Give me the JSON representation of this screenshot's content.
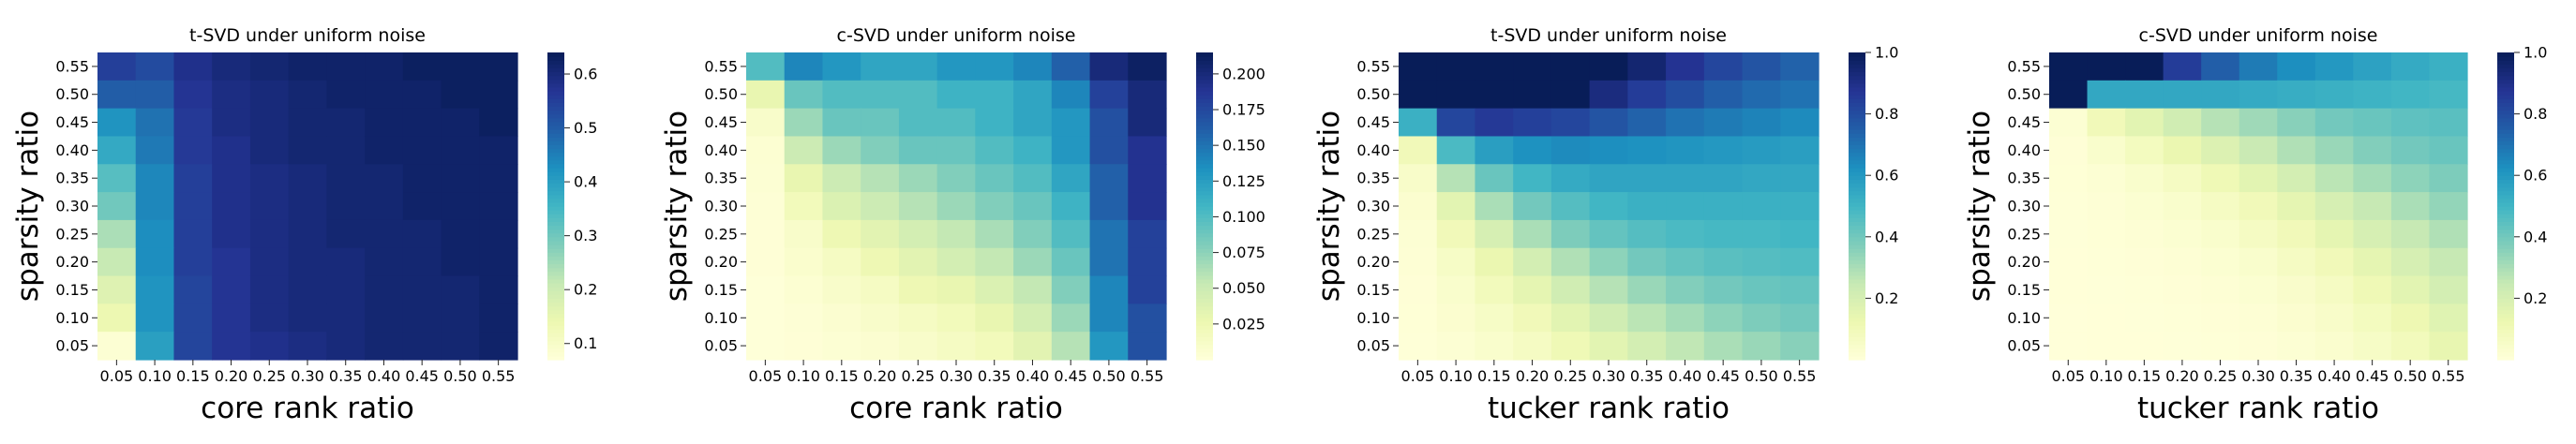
{
  "figure": {
    "cmap": "YlGnBu",
    "cmap_stops": [
      "#ffffd9",
      "#edf8b1",
      "#c7e9b4",
      "#7fcdbb",
      "#41b6c4",
      "#1d91c0",
      "#225ea8",
      "#253494",
      "#081d58"
    ]
  },
  "chart_data": [
    {
      "type": "heatmap",
      "title": "t-SVD under uniform noise",
      "xlabel": "core rank ratio",
      "ylabel": "sparsity ratio",
      "x_ticks": [
        "0.05",
        "0.10",
        "0.15",
        "0.20",
        "0.25",
        "0.30",
        "0.35",
        "0.40",
        "0.45",
        "0.50",
        "0.55"
      ],
      "y_ticks": [
        "0.55",
        "0.50",
        "0.45",
        "0.40",
        "0.35",
        "0.30",
        "0.25",
        "0.20",
        "0.15",
        "0.10",
        "0.05"
      ],
      "colorbar": {
        "min": 0.07,
        "max": 0.64,
        "ticks": [
          0.1,
          0.2,
          0.3,
          0.4,
          0.5,
          0.6
        ],
        "tick_labels": [
          "0.1",
          "0.2",
          "0.3",
          "0.4",
          "0.5",
          "0.6"
        ]
      },
      "values": [
        [
          0.55,
          0.53,
          0.58,
          0.6,
          0.61,
          0.62,
          0.62,
          0.62,
          0.63,
          0.63,
          0.63
        ],
        [
          0.5,
          0.5,
          0.57,
          0.59,
          0.6,
          0.61,
          0.62,
          0.62,
          0.62,
          0.63,
          0.63
        ],
        [
          0.42,
          0.47,
          0.56,
          0.59,
          0.6,
          0.61,
          0.61,
          0.62,
          0.62,
          0.62,
          0.63
        ],
        [
          0.38,
          0.46,
          0.56,
          0.58,
          0.6,
          0.61,
          0.61,
          0.62,
          0.62,
          0.62,
          0.62
        ],
        [
          0.33,
          0.44,
          0.55,
          0.58,
          0.59,
          0.6,
          0.61,
          0.61,
          0.62,
          0.62,
          0.62
        ],
        [
          0.3,
          0.44,
          0.55,
          0.58,
          0.59,
          0.6,
          0.61,
          0.61,
          0.62,
          0.62,
          0.62
        ],
        [
          0.24,
          0.43,
          0.55,
          0.58,
          0.59,
          0.6,
          0.61,
          0.61,
          0.61,
          0.62,
          0.62
        ],
        [
          0.21,
          0.43,
          0.55,
          0.57,
          0.59,
          0.6,
          0.6,
          0.61,
          0.61,
          0.62,
          0.62
        ],
        [
          0.17,
          0.42,
          0.54,
          0.57,
          0.59,
          0.6,
          0.6,
          0.61,
          0.61,
          0.61,
          0.62
        ],
        [
          0.14,
          0.42,
          0.54,
          0.57,
          0.59,
          0.6,
          0.6,
          0.61,
          0.61,
          0.61,
          0.62
        ],
        [
          0.08,
          0.4,
          0.54,
          0.57,
          0.58,
          0.59,
          0.6,
          0.61,
          0.61,
          0.61,
          0.62
        ]
      ]
    },
    {
      "type": "heatmap",
      "title": "c-SVD under uniform noise",
      "xlabel": "core rank ratio",
      "ylabel": "sparsity ratio",
      "x_ticks": [
        "0.05",
        "0.10",
        "0.15",
        "0.20",
        "0.25",
        "0.30",
        "0.35",
        "0.40",
        "0.45",
        "0.50",
        "0.55"
      ],
      "y_ticks": [
        "0.55",
        "0.50",
        "0.45",
        "0.40",
        "0.35",
        "0.30",
        "0.25",
        "0.20",
        "0.15",
        "0.10",
        "0.05"
      ],
      "colorbar": {
        "min": 0.0,
        "max": 0.215,
        "ticks": [
          0.025,
          0.05,
          0.075,
          0.1,
          0.125,
          0.15,
          0.175,
          0.2
        ],
        "tick_labels": [
          "0.025",
          "0.050",
          "0.075",
          "0.100",
          "0.125",
          "0.150",
          "0.175",
          "0.200"
        ]
      },
      "values": [
        [
          0.1,
          0.14,
          0.13,
          0.12,
          0.12,
          0.13,
          0.13,
          0.14,
          0.16,
          0.2,
          0.21
        ],
        [
          0.03,
          0.09,
          0.1,
          0.1,
          0.1,
          0.11,
          0.11,
          0.12,
          0.14,
          0.18,
          0.2
        ],
        [
          0.01,
          0.07,
          0.09,
          0.09,
          0.1,
          0.1,
          0.11,
          0.12,
          0.13,
          0.17,
          0.2
        ],
        [
          0.005,
          0.05,
          0.07,
          0.08,
          0.09,
          0.09,
          0.1,
          0.11,
          0.13,
          0.17,
          0.19
        ],
        [
          0.004,
          0.03,
          0.05,
          0.06,
          0.07,
          0.08,
          0.09,
          0.1,
          0.12,
          0.16,
          0.19
        ],
        [
          0.003,
          0.02,
          0.04,
          0.05,
          0.06,
          0.07,
          0.08,
          0.09,
          0.11,
          0.16,
          0.19
        ],
        [
          0.002,
          0.01,
          0.025,
          0.035,
          0.045,
          0.055,
          0.065,
          0.08,
          0.1,
          0.15,
          0.18
        ],
        [
          0.002,
          0.008,
          0.015,
          0.025,
          0.035,
          0.045,
          0.055,
          0.07,
          0.09,
          0.15,
          0.18
        ],
        [
          0.001,
          0.005,
          0.01,
          0.015,
          0.025,
          0.03,
          0.04,
          0.055,
          0.08,
          0.14,
          0.18
        ],
        [
          0.001,
          0.003,
          0.006,
          0.01,
          0.015,
          0.02,
          0.03,
          0.045,
          0.07,
          0.14,
          0.17
        ],
        [
          0.001,
          0.002,
          0.004,
          0.006,
          0.01,
          0.015,
          0.02,
          0.035,
          0.06,
          0.13,
          0.17
        ]
      ]
    },
    {
      "type": "heatmap",
      "title": "t-SVD under uniform noise",
      "xlabel": "tucker rank ratio",
      "ylabel": "sparsity ratio",
      "x_ticks": [
        "0.05",
        "0.10",
        "0.15",
        "0.20",
        "0.25",
        "0.30",
        "0.35",
        "0.40",
        "0.45",
        "0.50",
        "0.55"
      ],
      "y_ticks": [
        "0.55",
        "0.50",
        "0.45",
        "0.40",
        "0.35",
        "0.30",
        "0.25",
        "0.20",
        "0.15",
        "0.10",
        "0.05"
      ],
      "colorbar": {
        "min": 0.0,
        "max": 1.0,
        "ticks": [
          0.2,
          0.4,
          0.6,
          0.8,
          1.0
        ],
        "tick_labels": [
          "0.2",
          "0.4",
          "0.6",
          "0.8",
          "1.0"
        ]
      },
      "values": [
        [
          1.0,
          1.0,
          1.0,
          1.0,
          1.0,
          1.0,
          0.95,
          0.88,
          0.82,
          0.78,
          0.74
        ],
        [
          1.0,
          1.0,
          1.0,
          1.0,
          1.0,
          0.92,
          0.85,
          0.8,
          0.75,
          0.72,
          0.7
        ],
        [
          0.52,
          0.82,
          0.86,
          0.84,
          0.82,
          0.78,
          0.74,
          0.7,
          0.68,
          0.66,
          0.64
        ],
        [
          0.1,
          0.48,
          0.58,
          0.62,
          0.64,
          0.63,
          0.62,
          0.61,
          0.6,
          0.59,
          0.58
        ],
        [
          0.05,
          0.28,
          0.42,
          0.5,
          0.54,
          0.56,
          0.56,
          0.56,
          0.56,
          0.55,
          0.55
        ],
        [
          0.03,
          0.16,
          0.3,
          0.4,
          0.46,
          0.5,
          0.52,
          0.52,
          0.52,
          0.52,
          0.52
        ],
        [
          0.02,
          0.1,
          0.2,
          0.3,
          0.38,
          0.43,
          0.46,
          0.48,
          0.49,
          0.49,
          0.5
        ],
        [
          0.015,
          0.06,
          0.13,
          0.21,
          0.29,
          0.35,
          0.4,
          0.43,
          0.45,
          0.46,
          0.47
        ],
        [
          0.01,
          0.04,
          0.09,
          0.15,
          0.22,
          0.28,
          0.33,
          0.37,
          0.4,
          0.42,
          0.43
        ],
        [
          0.008,
          0.03,
          0.06,
          0.1,
          0.16,
          0.22,
          0.27,
          0.31,
          0.35,
          0.38,
          0.4
        ],
        [
          0.005,
          0.02,
          0.04,
          0.07,
          0.11,
          0.16,
          0.21,
          0.26,
          0.3,
          0.33,
          0.36
        ]
      ]
    },
    {
      "type": "heatmap",
      "title": "c-SVD under uniform noise",
      "xlabel": "tucker rank ratio",
      "ylabel": "sparsity ratio",
      "x_ticks": [
        "0.05",
        "0.10",
        "0.15",
        "0.20",
        "0.25",
        "0.30",
        "0.35",
        "0.40",
        "0.45",
        "0.50",
        "0.55"
      ],
      "y_ticks": [
        "0.55",
        "0.50",
        "0.45",
        "0.40",
        "0.35",
        "0.30",
        "0.25",
        "0.20",
        "0.15",
        "0.10",
        "0.05"
      ],
      "colorbar": {
        "min": 0.0,
        "max": 1.0,
        "ticks": [
          0.2,
          0.4,
          0.6,
          0.8,
          1.0
        ],
        "tick_labels": [
          "0.2",
          "0.4",
          "0.6",
          "0.8",
          "1.0"
        ]
      },
      "values": [
        [
          1.0,
          1.0,
          1.0,
          0.85,
          0.75,
          0.68,
          0.63,
          0.6,
          0.57,
          0.54,
          0.52
        ],
        [
          1.0,
          0.55,
          0.55,
          0.55,
          0.55,
          0.54,
          0.53,
          0.52,
          0.51,
          0.5,
          0.49
        ],
        [
          0.02,
          0.1,
          0.16,
          0.22,
          0.28,
          0.32,
          0.36,
          0.4,
          0.42,
          0.44,
          0.45
        ],
        [
          0.01,
          0.04,
          0.08,
          0.13,
          0.18,
          0.24,
          0.29,
          0.33,
          0.37,
          0.4,
          0.42
        ],
        [
          0.008,
          0.02,
          0.04,
          0.07,
          0.11,
          0.16,
          0.21,
          0.27,
          0.31,
          0.35,
          0.38
        ],
        [
          0.005,
          0.012,
          0.025,
          0.04,
          0.07,
          0.1,
          0.15,
          0.2,
          0.25,
          0.3,
          0.34
        ],
        [
          0.004,
          0.008,
          0.015,
          0.025,
          0.04,
          0.07,
          0.1,
          0.15,
          0.2,
          0.25,
          0.29
        ],
        [
          0.003,
          0.005,
          0.01,
          0.015,
          0.025,
          0.04,
          0.07,
          0.1,
          0.15,
          0.2,
          0.25
        ],
        [
          0.002,
          0.004,
          0.006,
          0.01,
          0.015,
          0.025,
          0.045,
          0.07,
          0.11,
          0.16,
          0.21
        ],
        [
          0.001,
          0.003,
          0.004,
          0.006,
          0.01,
          0.016,
          0.03,
          0.05,
          0.08,
          0.12,
          0.17
        ],
        [
          0.001,
          0.002,
          0.003,
          0.004,
          0.006,
          0.01,
          0.02,
          0.035,
          0.06,
          0.09,
          0.14
        ]
      ]
    }
  ]
}
